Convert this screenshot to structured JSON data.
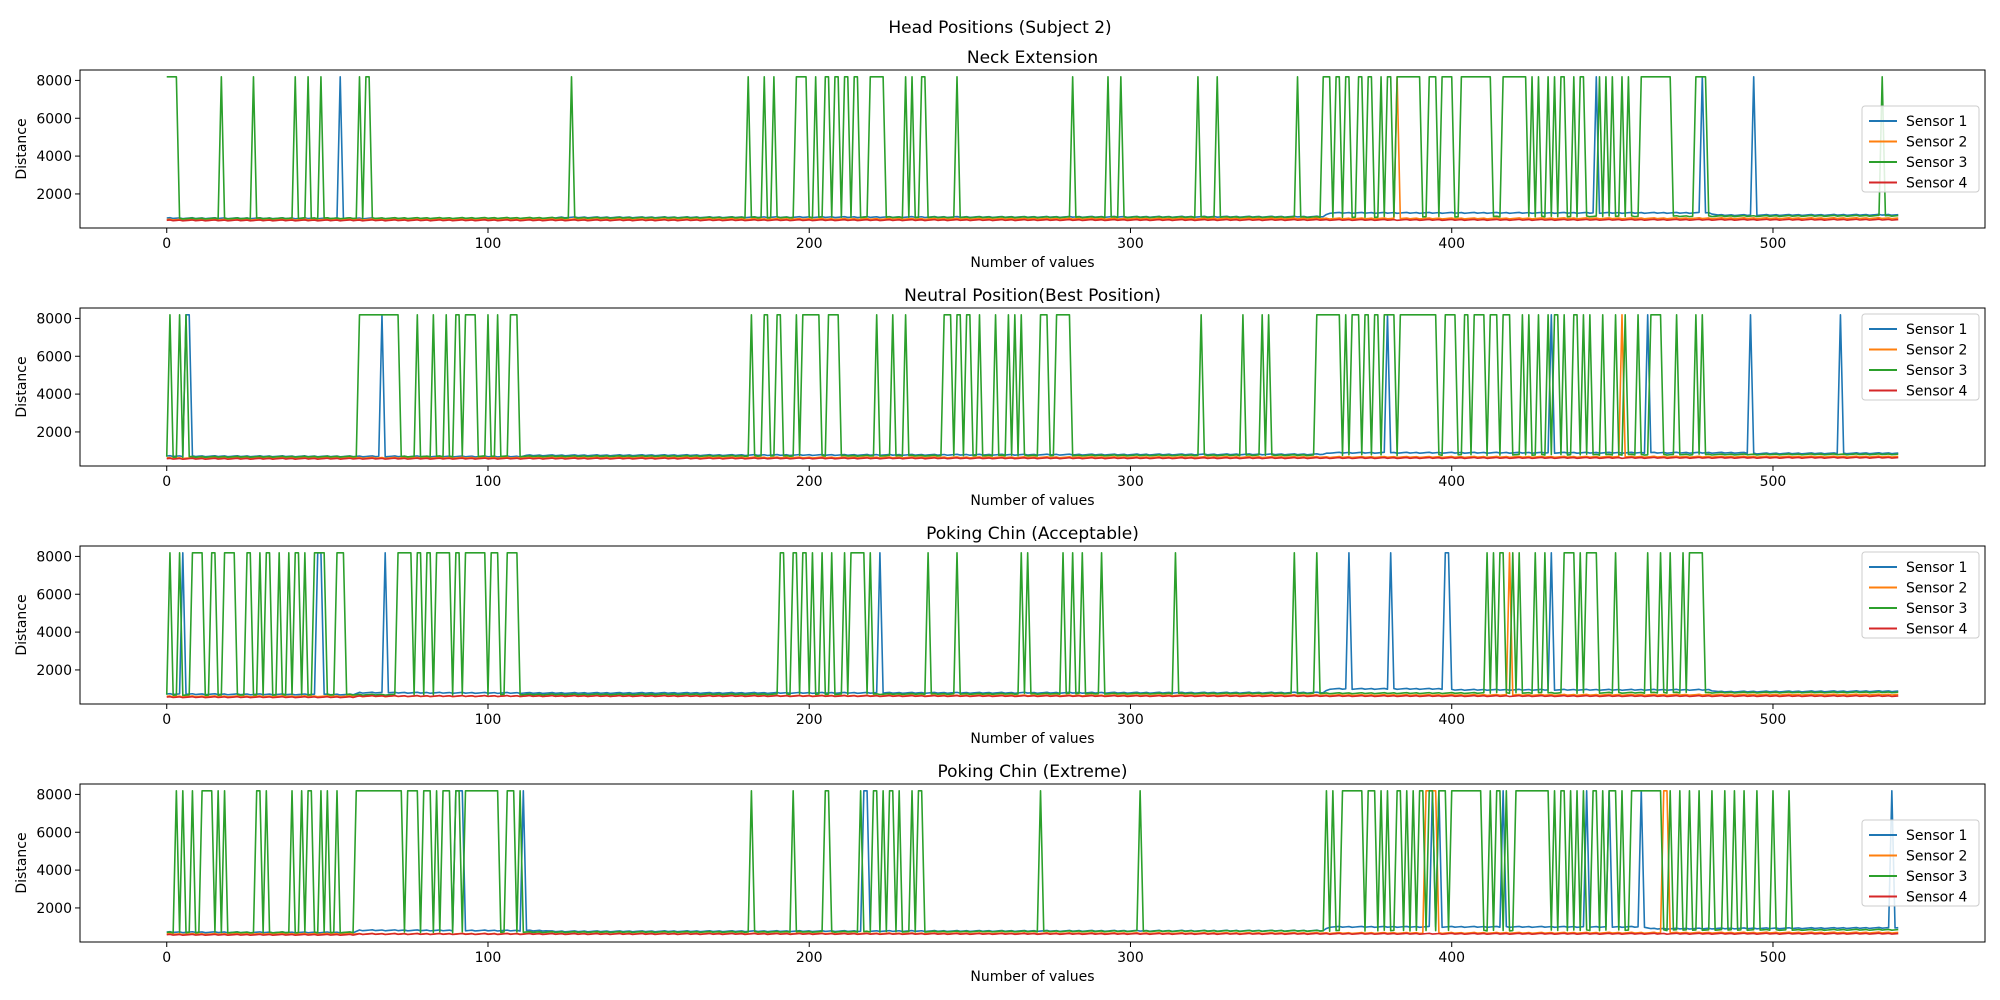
{
  "figure_title": "Head Positions (Subject 2)",
  "colors": {
    "Sensor 1": "#1f77b4",
    "Sensor 2": "#ff7f0e",
    "Sensor 3": "#2ca02c",
    "Sensor 4": "#d62728"
  },
  "chart_data": [
    {
      "type": "line",
      "title": "Neck Extension",
      "xlabel": "Number of values",
      "ylabel": "Distance",
      "xlim": [
        -27,
        566
      ],
      "ylim": [
        200,
        8550
      ],
      "xticks": [
        0,
        100,
        200,
        300,
        400,
        500
      ],
      "yticks": [
        2000,
        4000,
        6000,
        8000
      ],
      "legend": [
        "Sensor 1",
        "Sensor 2",
        "Sensor 3",
        "Sensor 4"
      ],
      "legend_position": "right",
      "n": 540,
      "baseline": {
        "Sensor 1": [
          [
            0,
            720
          ],
          [
            118,
            700
          ],
          [
            122,
            760
          ],
          [
            360,
            800
          ],
          [
            362,
            1000
          ],
          [
            480,
            1000
          ],
          [
            483,
            880
          ],
          [
            540,
            900
          ]
        ],
        "Sensor 2": [
          [
            0,
            640
          ],
          [
            360,
            700
          ],
          [
            540,
            720
          ]
        ],
        "Sensor 3": [
          [
            0,
            700
          ],
          [
            200,
            760
          ],
          [
            360,
            780
          ],
          [
            540,
            850
          ]
        ],
        "Sensor 4": [
          [
            0,
            600
          ],
          [
            540,
            640
          ]
        ]
      },
      "spikes": {
        "Sensor 1": [
          54,
          445,
          478,
          494
        ],
        "Sensor 2": [
          383
        ],
        "Sensor 3": [
          0,
          1,
          2,
          3,
          17,
          27,
          40,
          44,
          48,
          60,
          62,
          63,
          126,
          181,
          186,
          189,
          196,
          197,
          198,
          199,
          202,
          205,
          206,
          208,
          209,
          211,
          212,
          214,
          215,
          219,
          220,
          221,
          222,
          223,
          230,
          232,
          235,
          236,
          246,
          282,
          293,
          297,
          321,
          327,
          352,
          360,
          361,
          362,
          364,
          365,
          367,
          368,
          371,
          372,
          374,
          375,
          378,
          380,
          381,
          383,
          384,
          385,
          386,
          387,
          388,
          389,
          390,
          393,
          394,
          395,
          397,
          398,
          399,
          400,
          403,
          404,
          405,
          406,
          407,
          408,
          409,
          410,
          411,
          412,
          416,
          417,
          418,
          419,
          420,
          421,
          422,
          423,
          425,
          427,
          430,
          432,
          434,
          435,
          438,
          440,
          441,
          446,
          448,
          450,
          453,
          455,
          459,
          460,
          461,
          462,
          463,
          464,
          465,
          466,
          467,
          468,
          476,
          477,
          478,
          479,
          534
        ]
      }
    },
    {
      "type": "line",
      "title": "Neutral Position(Best Position)",
      "xlabel": "Number of values",
      "ylabel": "Distance",
      "xlim": [
        -27,
        566
      ],
      "ylim": [
        200,
        8550
      ],
      "xticks": [
        0,
        100,
        200,
        300,
        400,
        500
      ],
      "yticks": [
        2000,
        4000,
        6000,
        8000
      ],
      "legend": [
        "Sensor 1",
        "Sensor 2",
        "Sensor 3",
        "Sensor 4"
      ],
      "legend_position": "top-right",
      "n": 540,
      "baseline": {
        "Sensor 1": [
          [
            0,
            720
          ],
          [
            110,
            700
          ],
          [
            112,
            760
          ],
          [
            360,
            820
          ],
          [
            362,
            900
          ],
          [
            490,
            900
          ],
          [
            495,
            860
          ],
          [
            540,
            880
          ]
        ],
        "Sensor 2": [
          [
            0,
            620
          ],
          [
            540,
            700
          ]
        ],
        "Sensor 3": [
          [
            0,
            680
          ],
          [
            200,
            740
          ],
          [
            540,
            820
          ]
        ],
        "Sensor 4": [
          [
            0,
            580
          ],
          [
            540,
            640
          ]
        ]
      },
      "spikes": {
        "Sensor 1": [
          6,
          7,
          67,
          380,
          431,
          461,
          493,
          521
        ],
        "Sensor 2": [
          453
        ],
        "Sensor 3": [
          1,
          4,
          6,
          60,
          61,
          62,
          63,
          64,
          65,
          66,
          67,
          68,
          69,
          70,
          71,
          72,
          78,
          83,
          87,
          90,
          91,
          93,
          94,
          95,
          96,
          100,
          103,
          107,
          108,
          109,
          182,
          186,
          187,
          190,
          191,
          196,
          198,
          199,
          200,
          201,
          202,
          203,
          206,
          207,
          208,
          209,
          221,
          226,
          230,
          242,
          243,
          244,
          246,
          247,
          249,
          250,
          253,
          258,
          262,
          264,
          266,
          272,
          273,
          274,
          277,
          278,
          279,
          280,
          281,
          322,
          335,
          341,
          343,
          358,
          359,
          360,
          361,
          362,
          363,
          364,
          365,
          367,
          369,
          370,
          371,
          373,
          374,
          376,
          377,
          379,
          380,
          381,
          382,
          384,
          385,
          386,
          387,
          388,
          389,
          390,
          391,
          392,
          393,
          394,
          395,
          398,
          399,
          400,
          401,
          404,
          405,
          407,
          408,
          409,
          410,
          412,
          413,
          414,
          416,
          417,
          418,
          422,
          424,
          427,
          430,
          432,
          433,
          435,
          438,
          439,
          441,
          443,
          447,
          451,
          454,
          458,
          462,
          463,
          464,
          465,
          470,
          476,
          478
        ]
      }
    },
    {
      "type": "line",
      "title": "Poking Chin (Acceptable)",
      "xlabel": "Number of values",
      "ylabel": "Distance",
      "xlim": [
        -27,
        566
      ],
      "ylim": [
        200,
        8550
      ],
      "xticks": [
        0,
        100,
        200,
        300,
        400,
        500
      ],
      "yticks": [
        2000,
        4000,
        6000,
        8000
      ],
      "legend": [
        "Sensor 1",
        "Sensor 2",
        "Sensor 3",
        "Sensor 4"
      ],
      "legend_position": "top-right",
      "n": 540,
      "baseline": {
        "Sensor 1": [
          [
            0,
            720
          ],
          [
            58,
            700
          ],
          [
            60,
            800
          ],
          [
            120,
            780
          ],
          [
            360,
            800
          ],
          [
            362,
            1000
          ],
          [
            398,
            1000
          ],
          [
            400,
            950
          ],
          [
            480,
            950
          ],
          [
            483,
            850
          ],
          [
            540,
            880
          ]
        ],
        "Sensor 2": [
          [
            0,
            600
          ],
          [
            540,
            700
          ]
        ],
        "Sensor 3": [
          [
            0,
            680
          ],
          [
            200,
            720
          ],
          [
            540,
            820
          ]
        ],
        "Sensor 4": [
          [
            0,
            560
          ],
          [
            58,
            560
          ],
          [
            60,
            620
          ],
          [
            540,
            620
          ]
        ]
      },
      "spikes": {
        "Sensor 1": [
          5,
          47,
          48,
          68,
          222,
          368,
          381,
          398,
          399,
          431
        ],
        "Sensor 2": [
          418
        ],
        "Sensor 3": [
          1,
          4,
          8,
          9,
          10,
          11,
          14,
          15,
          18,
          19,
          20,
          21,
          25,
          26,
          29,
          31,
          32,
          35,
          38,
          40,
          41,
          43,
          46,
          47,
          48,
          49,
          53,
          54,
          55,
          72,
          73,
          74,
          75,
          76,
          78,
          79,
          81,
          82,
          84,
          85,
          86,
          87,
          88,
          90,
          91,
          93,
          94,
          95,
          96,
          97,
          98,
          99,
          101,
          102,
          103,
          106,
          107,
          108,
          109,
          191,
          192,
          195,
          196,
          198,
          199,
          201,
          204,
          207,
          211,
          213,
          214,
          215,
          216,
          217,
          219,
          237,
          246,
          266,
          268,
          279,
          282,
          285,
          291,
          314,
          351,
          358,
          411,
          413,
          415,
          416,
          419,
          421,
          426,
          429,
          435,
          436,
          437,
          438,
          440,
          442,
          443,
          444,
          445,
          451,
          461,
          465,
          468,
          472,
          474,
          475,
          476,
          477,
          478
        ]
      }
    },
    {
      "type": "line",
      "title": "Poking Chin (Extreme)",
      "xlabel": "Number of values",
      "ylabel": "Distance",
      "xlim": [
        -27,
        566
      ],
      "ylim": [
        200,
        8550
      ],
      "xticks": [
        0,
        100,
        200,
        300,
        400,
        500
      ],
      "yticks": [
        2000,
        4000,
        6000,
        8000
      ],
      "legend": [
        "Sensor 1",
        "Sensor 2",
        "Sensor 3",
        "Sensor 4"
      ],
      "legend_position": "right",
      "n": 540,
      "baseline": {
        "Sensor 1": [
          [
            0,
            720
          ],
          [
            58,
            700
          ],
          [
            60,
            820
          ],
          [
            118,
            800
          ],
          [
            120,
            760
          ],
          [
            360,
            800
          ],
          [
            362,
            1000
          ],
          [
            460,
            1000
          ],
          [
            462,
            900
          ],
          [
            540,
            950
          ]
        ],
        "Sensor 2": [
          [
            0,
            620
          ],
          [
            540,
            700
          ]
        ],
        "Sensor 3": [
          [
            0,
            700
          ],
          [
            200,
            740
          ],
          [
            540,
            850
          ]
        ],
        "Sensor 4": [
          [
            0,
            580
          ],
          [
            58,
            580
          ],
          [
            60,
            620
          ],
          [
            540,
            640
          ]
        ]
      },
      "spikes": {
        "Sensor 1": [
          90,
          91,
          92,
          111,
          217,
          218,
          394,
          396,
          416,
          442,
          449,
          459,
          537
        ],
        "Sensor 2": [
          392,
          393,
          394,
          395,
          466,
          467
        ],
        "Sensor 3": [
          3,
          5,
          8,
          11,
          12,
          13,
          14,
          16,
          18,
          28,
          29,
          31,
          39,
          42,
          44,
          45,
          48,
          50,
          53,
          59,
          60,
          61,
          62,
          63,
          64,
          65,
          66,
          67,
          68,
          69,
          70,
          71,
          72,
          73,
          75,
          76,
          77,
          78,
          80,
          81,
          82,
          84,
          86,
          87,
          88,
          90,
          91,
          93,
          94,
          95,
          96,
          97,
          98,
          99,
          100,
          101,
          102,
          103,
          106,
          107,
          108,
          110,
          182,
          195,
          205,
          206,
          216,
          220,
          221,
          223,
          225,
          226,
          228,
          232,
          234,
          235,
          272,
          303,
          361,
          363,
          366,
          367,
          368,
          369,
          370,
          371,
          372,
          374,
          375,
          376,
          378,
          380,
          383,
          384,
          386,
          388,
          390,
          391,
          393,
          394,
          396,
          397,
          398,
          400,
          401,
          402,
          403,
          404,
          405,
          406,
          407,
          408,
          409,
          412,
          414,
          415,
          417,
          420,
          421,
          422,
          423,
          424,
          425,
          426,
          427,
          428,
          429,
          430,
          432,
          434,
          435,
          437,
          439,
          441,
          444,
          445,
          447,
          449,
          450,
          451,
          453,
          456,
          457,
          458,
          459,
          460,
          461,
          462,
          463,
          464,
          465,
          468,
          471,
          474,
          477,
          481,
          485,
          488,
          491,
          495,
          500,
          505
        ]
      }
    }
  ]
}
